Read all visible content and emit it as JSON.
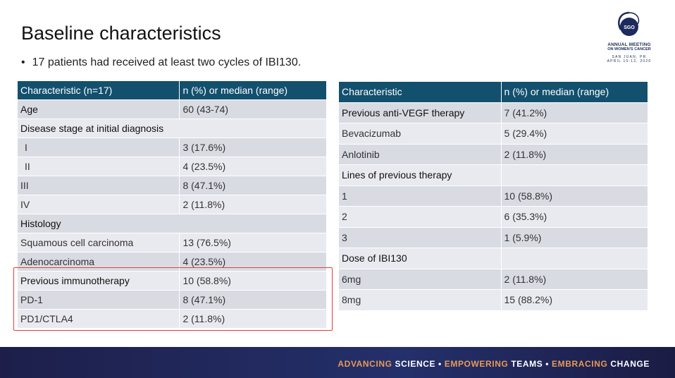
{
  "title": "Baseline characteristics",
  "bullet": "17 patients had received at least two cycles of IBI130.",
  "logo": {
    "emblem": "SGO",
    "line1": "ANNUAL MEETING",
    "line2": "ON WOMEN'S CANCER",
    "line3": "SAN JUAN, PR",
    "line4": "APRIL 10-13, 2026"
  },
  "table_left": {
    "headers": [
      "Characteristic (n=17)",
      "n (%) or median (range)"
    ],
    "rows": [
      {
        "label": "Age",
        "value": "60 (43-74)"
      },
      {
        "label": "Disease stage at initial diagnosis",
        "value": ""
      },
      {
        "label": "I",
        "value": "3 (17.6%)"
      },
      {
        "label": "II",
        "value": "4 (23.5%)"
      },
      {
        "label": "III",
        "value": "8 (47.1%)"
      },
      {
        "label": "IV",
        "value": "2 (11.8%)"
      },
      {
        "label": "Histology",
        "value": ""
      },
      {
        "label": "Squamous cell carcinoma",
        "value": "13 (76.5%)"
      },
      {
        "label": "Adenocarcinoma",
        "value": "4 (23.5%)"
      },
      {
        "label": "Previous immunotherapy",
        "value": "10 (58.8%)"
      },
      {
        "label": "PD-1",
        "value": "8 (47.1%)"
      },
      {
        "label": "PD1/CTLA4",
        "value": "2 (11.8%)"
      }
    ]
  },
  "table_right": {
    "headers": [
      "Characteristic",
      "n (%) or median (range)"
    ],
    "rows": [
      {
        "label": "Previous anti-VEGF therapy",
        "value": "7 (41.2%)"
      },
      {
        "label": "Bevacizumab",
        "value": "5 (29.4%)"
      },
      {
        "label": "Anlotinib",
        "value": "2 (11.8%)"
      },
      {
        "label": "Lines of previous therapy",
        "value": ""
      },
      {
        "label": "1",
        "value": "10 (58.8%)"
      },
      {
        "label": "2",
        "value": "6 (35.3%)"
      },
      {
        "label": "3",
        "value": "1 (5.9%)"
      },
      {
        "label": "Dose of IBI130",
        "value": ""
      },
      {
        "label": "6mg",
        "value": "2 (11.8%)"
      },
      {
        "label": "8mg",
        "value": "15 (88.2%)"
      }
    ]
  },
  "footer": {
    "w1": "ADVANCING",
    "w2": "SCIENCE •",
    "w3": "EMPOWERING",
    "w4": "TEAMS •",
    "w5": "EMBRACING",
    "w6": "CHANGE"
  },
  "colors": {
    "header_bg": "#13506e",
    "row_dark": "#d9dbe3",
    "row_light": "#e9eaef",
    "highlight": "#e63c3c",
    "footer_accent": "#e69a57"
  }
}
